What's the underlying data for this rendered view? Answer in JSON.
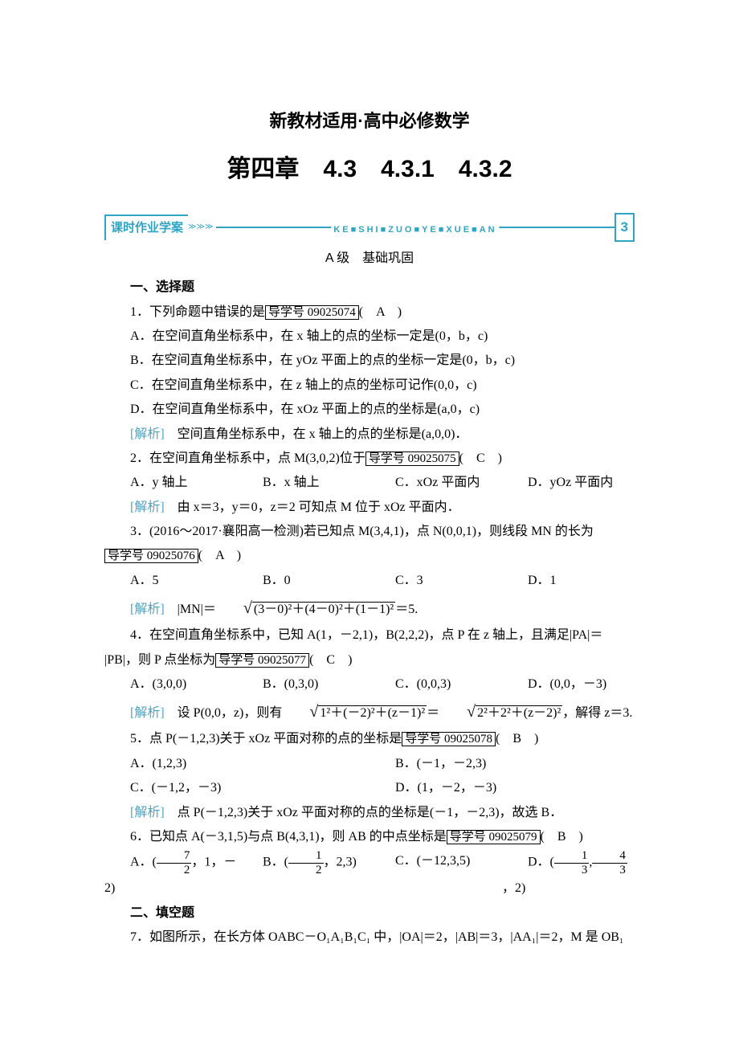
{
  "doc_title": "新教材适用·高中必修数学",
  "chapter_title": "第四章　4.3　4.3.1　4.3.2",
  "banner": {
    "label": "课时作业学案",
    "arrows": "≫≫≫",
    "middle": "KE■SHI■ZUO■YE■XUE■AN",
    "number": "3"
  },
  "level": "A 级　基础巩固",
  "sections": {
    "s1": "一、选择题",
    "s2": "二、填空题"
  },
  "q1": {
    "stem_pre": "1．下列命题中错误的是",
    "guide": "导学号 09025074",
    "stem_post": "(　A　)",
    "a": "A．在空间直角坐标系中，在 x 轴上的点的坐标一定是(0，b，c)",
    "b": "B．在空间直角坐标系中，在 yOz 平面上的点的坐标一定是(0，b，c)",
    "c": "C．在空间直角坐标系中，在 z 轴上的点的坐标可记作(0,0，c)",
    "d": "D．在空间直角坐标系中，在 xOz 平面上的点的坐标是(a,0，c)",
    "analysis_label": "[解析]",
    "analysis": "　空间直角坐标系中，在 x 轴上的点的坐标是(a,0,0)．"
  },
  "q2": {
    "stem_pre": "2．在空间直角坐标系中，点 M(3,0,2)位于",
    "guide": "导学号 09025075",
    "stem_post": "(　C　)",
    "a": "A．y 轴上",
    "b": "B．x 轴上",
    "c": "C．xOz 平面内",
    "d": "D．yOz 平面内",
    "analysis_label": "[解析]",
    "analysis": "　由 x＝3，y＝0，z＝2 可知点 M 位于 xOz 平面内．"
  },
  "q3": {
    "stem_pre1": "3．(2016～2017·襄阳高一检测)若已知点 M(3,4,1)，点 N(0,0,1)，则线段 MN 的长为",
    "guide": "导学号 09025076",
    "stem_post": "(　A　)",
    "a": "A．5",
    "b": "B．0",
    "c": "C．3",
    "d": "D．1",
    "analysis_label": "[解析]",
    "analysis_pre": "　|MN|＝",
    "sqrt_body": "(3－0)²＋(4－0)²＋(1－1)²",
    "analysis_post": "＝5."
  },
  "q4": {
    "stem_line1": "4．在空间直角坐标系中，已知 A(1，－2,1)，B(2,2,2)，点 P 在 z 轴上，且满足|PA|＝",
    "stem_line2_pre": "|PB|，则 P 点坐标为",
    "guide": "导学号 09025077",
    "stem_post": "(　C　)",
    "a": "A．(3,0,0)",
    "b": "B．(0,3,0)",
    "c": "C．(0,0,3)",
    "d": "D．(0,0，－3)",
    "analysis_label": "[解析]",
    "analysis_pre": "　设 P(0,0，z)，则有",
    "sqrt1": "1²＋(－2)²＋(z－1)²",
    "mid": "＝",
    "sqrt2": "2²＋2²＋(z－2)²",
    "analysis_post": "，解得 z＝3."
  },
  "q5": {
    "stem_pre": "5．点 P(－1,2,3)关于 xOz 平面对称的点的坐标是",
    "guide": "导学号 09025078",
    "stem_post": "(　B　)",
    "a": "A．(1,2,3)",
    "b": "B．(－1，－2,3)",
    "c": "C．(－1,2，－3)",
    "d": "D．(1，－2，－3)",
    "analysis_label": "[解析]",
    "analysis": "　点 P(－1,2,3)关于 xOz 平面对称的点的坐标是(－1，－2,3)，故选 B．"
  },
  "q6": {
    "stem_pre": "6．已知点 A(－3,1,5)与点 B(4,3,1)，则 AB 的中点坐标是",
    "guide": "导学号 09025079",
    "stem_post": "(　B　)",
    "a_pre": "A．(",
    "a_num": "7",
    "a_den": "2",
    "a_post": "，1，－2)",
    "b_pre": "B．(",
    "b_num": "1",
    "b_den": "2",
    "b_post": "，2,3)",
    "c": "C．(－12,3,5)",
    "d_pre": "D．(",
    "d_num1": "1",
    "d_den1": "3",
    "d_mid": ",",
    "d_num2": "4",
    "d_den2": "3",
    "d_post": "，2)"
  },
  "q7": {
    "stem": "7．如图所示，在长方体 OABC－O₁A₁B₁C₁ 中，|OA|＝2，|AB|＝3，|AA₁|＝2，M 是 OB₁"
  }
}
